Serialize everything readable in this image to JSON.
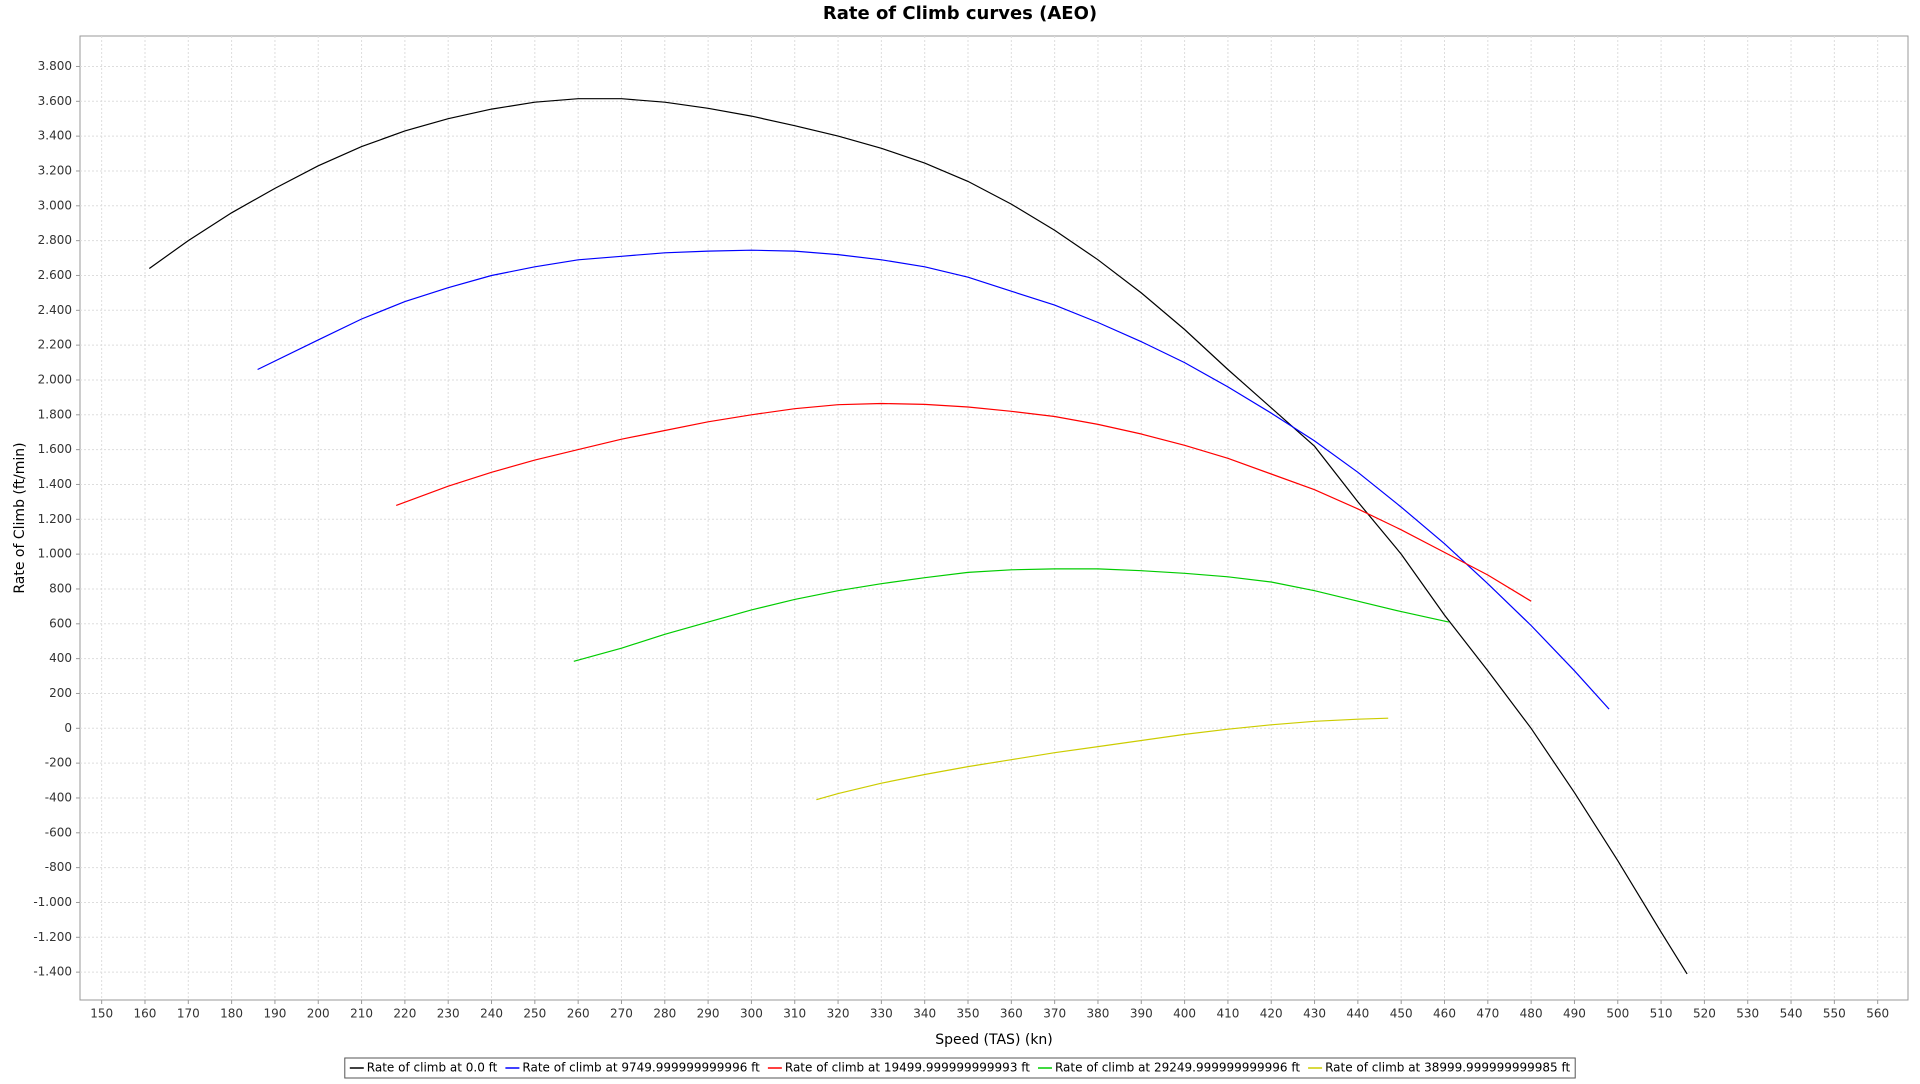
{
  "chart_data": {
    "type": "line",
    "title": "Rate of Climb curves (AEO)",
    "x_label": "Speed (TAS) (kn)",
    "y_label": "Rate of Climb (ft/min)",
    "xlim": [
      145,
      567
    ],
    "xticks": [
      150,
      160,
      170,
      180,
      190,
      200,
      210,
      220,
      230,
      240,
      250,
      260,
      270,
      280,
      290,
      300,
      310,
      320,
      330,
      340,
      350,
      360,
      370,
      380,
      390,
      400,
      410,
      420,
      430,
      440,
      450,
      460,
      470,
      480,
      490,
      500,
      510,
      520,
      530,
      540,
      550,
      560
    ],
    "ylim": [
      -1560,
      3975
    ],
    "yticks": [
      {
        "value": 3800,
        "label": "3.800"
      },
      {
        "value": 3600,
        "label": "3.600"
      },
      {
        "value": 3400,
        "label": "3.400"
      },
      {
        "value": 3200,
        "label": "3.200"
      },
      {
        "value": 3000,
        "label": "3.000"
      },
      {
        "value": 2800,
        "label": "2.800"
      },
      {
        "value": 2600,
        "label": "2.600"
      },
      {
        "value": 2400,
        "label": "2.400"
      },
      {
        "value": 2200,
        "label": "2.200"
      },
      {
        "value": 2000,
        "label": "2.000"
      },
      {
        "value": 1800,
        "label": "1.800"
      },
      {
        "value": 1600,
        "label": "1.600"
      },
      {
        "value": 1400,
        "label": "1.400"
      },
      {
        "value": 1200,
        "label": "1.200"
      },
      {
        "value": 1000,
        "label": "1.000"
      },
      800,
      600,
      400,
      200,
      0,
      -200,
      -400,
      -600,
      -800,
      {
        "value": -1000,
        "label": "-1.000"
      },
      {
        "value": -1200,
        "label": "-1.200"
      },
      {
        "value": -1400,
        "label": "-1.400"
      }
    ],
    "grid": true,
    "legend": "bottom",
    "series": [
      {
        "name": "Rate of climb at 0.0 ft",
        "color": "#000000",
        "x": [
          161,
          170,
          180,
          190,
          200,
          210,
          220,
          230,
          240,
          250,
          260,
          270,
          280,
          290,
          300,
          310,
          320,
          330,
          340,
          350,
          360,
          370,
          380,
          390,
          400,
          410,
          420,
          430,
          440,
          450,
          460,
          470,
          480,
          490,
          500,
          510,
          516
        ],
        "values": [
          2640,
          2800,
          2960,
          3100,
          3230,
          3340,
          3430,
          3500,
          3555,
          3595,
          3615,
          3615,
          3595,
          3560,
          3515,
          3460,
          3400,
          3330,
          3245,
          3140,
          3010,
          2860,
          2690,
          2500,
          2290,
          2060,
          1840,
          1620,
          1300,
          1000,
          650,
          330,
          0,
          -370,
          -760,
          -1170,
          -1410
        ]
      },
      {
        "name": "Rate of climb at 9749.999999999996 ft",
        "color": "#0000ff",
        "x": [
          186,
          200,
          210,
          220,
          230,
          240,
          250,
          260,
          270,
          280,
          290,
          300,
          310,
          320,
          330,
          340,
          350,
          360,
          370,
          380,
          390,
          400,
          410,
          420,
          430,
          440,
          450,
          460,
          470,
          480,
          490,
          498
        ],
        "values": [
          2060,
          2230,
          2350,
          2450,
          2530,
          2600,
          2650,
          2690,
          2710,
          2730,
          2740,
          2745,
          2740,
          2720,
          2690,
          2650,
          2590,
          2510,
          2430,
          2330,
          2220,
          2100,
          1960,
          1810,
          1650,
          1470,
          1270,
          1060,
          830,
          590,
          330,
          110
        ]
      },
      {
        "name": "Rate of climb at 19499.999999999993 ft",
        "color": "#ff0000",
        "x": [
          218,
          230,
          240,
          250,
          260,
          270,
          280,
          290,
          300,
          310,
          320,
          330,
          340,
          350,
          360,
          370,
          380,
          390,
          400,
          410,
          420,
          430,
          440,
          450,
          460,
          470,
          480
        ],
        "values": [
          1280,
          1390,
          1470,
          1540,
          1600,
          1660,
          1710,
          1760,
          1800,
          1835,
          1858,
          1865,
          1860,
          1845,
          1820,
          1790,
          1745,
          1690,
          1625,
          1550,
          1460,
          1370,
          1260,
          1140,
          1010,
          880,
          730
        ]
      },
      {
        "name": "Rate of climb at 29249.999999999996 ft",
        "color": "#00cc00",
        "x": [
          259,
          270,
          280,
          290,
          300,
          310,
          320,
          330,
          340,
          350,
          360,
          370,
          380,
          390,
          400,
          410,
          420,
          430,
          440,
          450,
          461
        ],
        "values": [
          385,
          460,
          540,
          610,
          680,
          740,
          790,
          830,
          865,
          895,
          910,
          915,
          915,
          905,
          890,
          870,
          840,
          790,
          730,
          670,
          610
        ]
      },
      {
        "name": "Rate of climb at 38999.999999999985 ft",
        "color": "#cccc00",
        "x": [
          315,
          320,
          330,
          340,
          350,
          360,
          370,
          380,
          390,
          400,
          410,
          420,
          430,
          440,
          447
        ],
        "values": [
          -410,
          -375,
          -315,
          -265,
          -220,
          -180,
          -140,
          -105,
          -70,
          -35,
          -5,
          20,
          40,
          52,
          58
        ]
      }
    ]
  }
}
